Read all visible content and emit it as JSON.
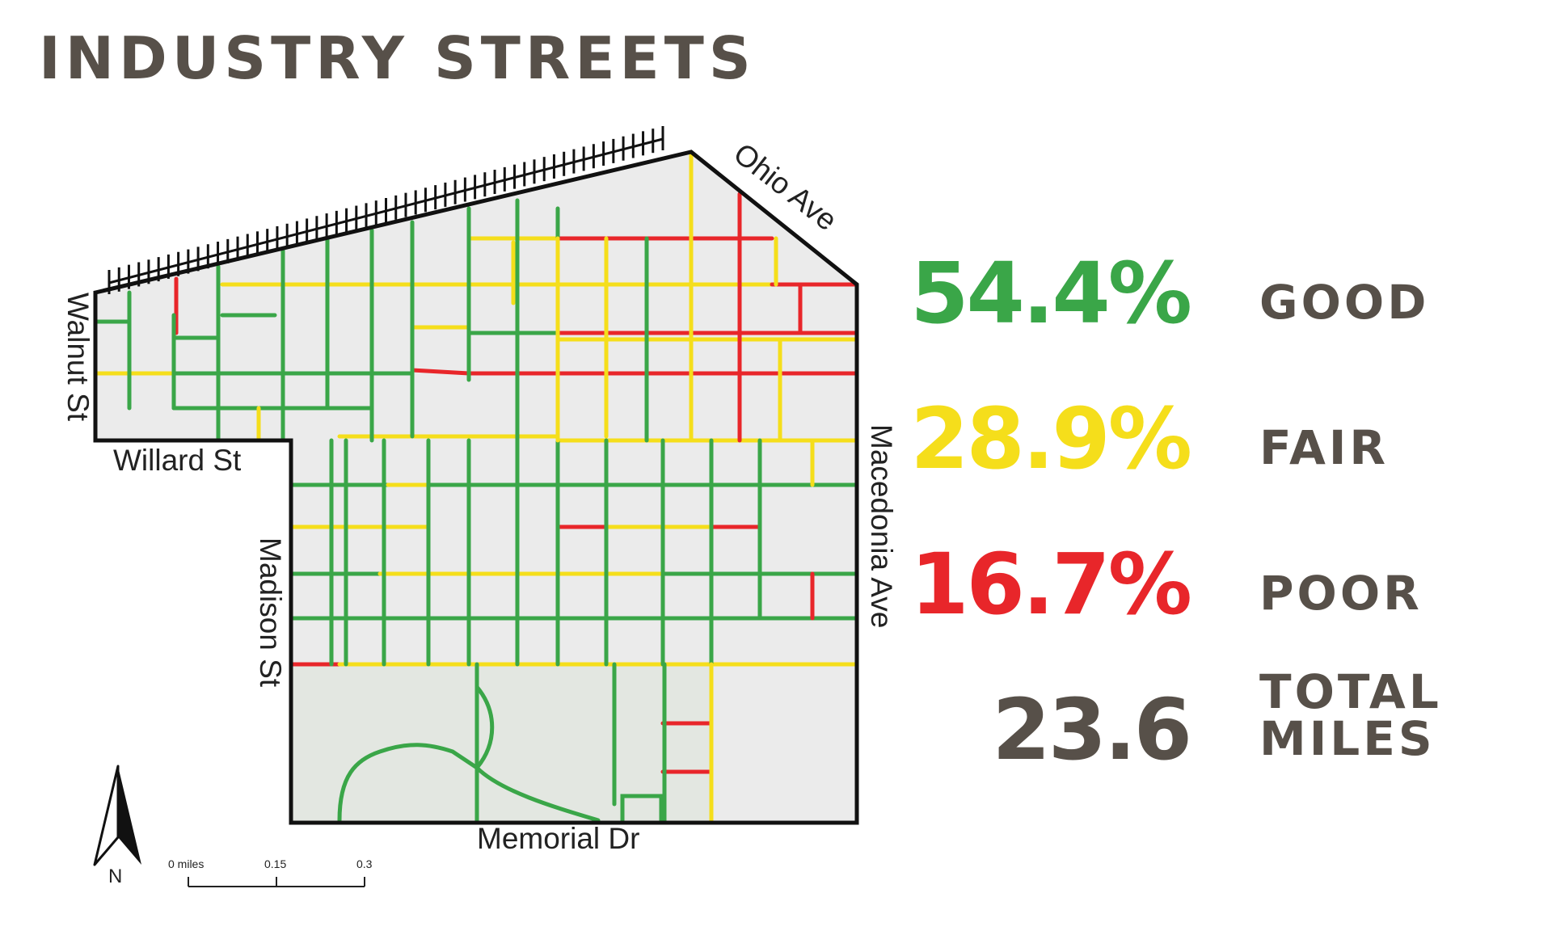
{
  "title": "INDUSTRY STREETS",
  "colors": {
    "good": "#3aa648",
    "fair": "#f5de1b",
    "poor": "#e8262a",
    "text": "#575049",
    "boundary": "#111111",
    "land": "#ebebeb",
    "park": "#e4e8e2"
  },
  "street_labels": {
    "ohio": "Ohio Ave",
    "walnut": "Walnut St",
    "willard": "Willard St",
    "madison": "Madison St",
    "macedonia": "Macedonia Ave",
    "memorial": "Memorial Dr"
  },
  "north_arrow": {
    "icon": "north-arrow-icon",
    "label": "N"
  },
  "scale_bar": {
    "ticks": [
      "0 miles",
      "0.15",
      "0.3"
    ]
  },
  "stats": {
    "good": {
      "value": "54.4%",
      "label": "GOOD"
    },
    "fair": {
      "value": "28.9%",
      "label": "FAIR"
    },
    "poor": {
      "value": "16.7%",
      "label": "POOR"
    },
    "total": {
      "value": "23.6",
      "label": "TOTAL MILES"
    }
  }
}
